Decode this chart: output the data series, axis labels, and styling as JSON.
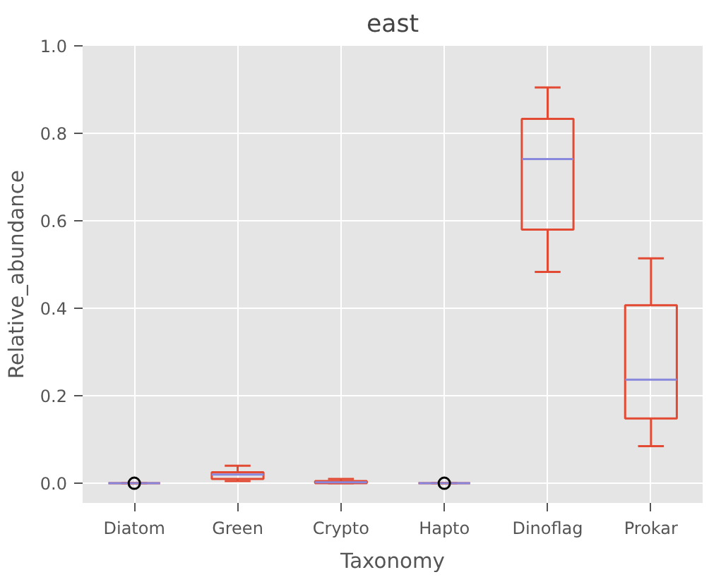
{
  "chart_data": {
    "type": "box",
    "title": "east",
    "xlabel": "Taxonomy",
    "ylabel": "Relative_abundance",
    "categories": [
      "Diatom",
      "Green",
      "Crypto",
      "Hapto",
      "Dinoflag",
      "Prokar"
    ],
    "ylim": [
      -0.045,
      1.0
    ],
    "yticks": [
      {
        "value": 0,
        "label": "0.0"
      },
      {
        "value": 0.2,
        "label": "0.2"
      },
      {
        "value": 0.4,
        "label": "0.4"
      },
      {
        "value": 0.6,
        "label": "0.6"
      },
      {
        "value": 0.8,
        "label": "0.8"
      },
      {
        "value": 1.0,
        "label": "1.0"
      }
    ],
    "grid": true,
    "series": [
      {
        "color": "#e24a33",
        "boxes": [
          {
            "low": 0,
            "q1": 0,
            "median": 0,
            "q3": 0,
            "high": 0,
            "outliers": [
              0
            ]
          },
          {
            "low": 0.005,
            "q1": 0.01,
            "median": 0.02,
            "q3": 0.025,
            "high": 0.04
          },
          {
            "low": 0,
            "q1": 0,
            "median": 0.002,
            "q3": 0.005,
            "high": 0.01
          },
          {
            "low": 0,
            "q1": 0,
            "median": 0,
            "q3": 0,
            "high": 0,
            "outliers": [
              0
            ]
          },
          {
            "low": 0.483,
            "q1": 0.58,
            "median": 0.741,
            "q3": 0.833,
            "high": 0.905
          },
          {
            "low": 0.085,
            "q1": 0.148,
            "median": 0.237,
            "q3": 0.407,
            "high": 0.514
          }
        ]
      }
    ]
  }
}
